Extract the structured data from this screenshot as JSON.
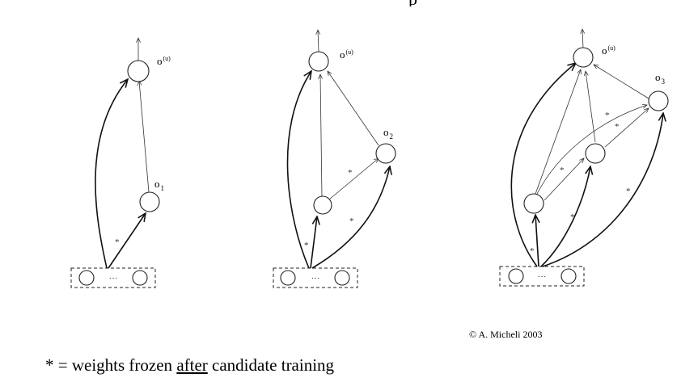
{
  "panels": [
    {
      "id": "step1",
      "output_label": {
        "base": "o",
        "sup": "(u)"
      },
      "hidden_labels": [
        {
          "base": "o",
          "sub": "1"
        }
      ],
      "input_dots": "···",
      "stars": [
        "*"
      ]
    },
    {
      "id": "step2",
      "output_label": {
        "base": "o",
        "sup": "(u)"
      },
      "hidden_labels": [
        {
          "base": "o",
          "sub": "2"
        }
      ],
      "input_dots": "···",
      "stars": [
        "*",
        "*",
        "*"
      ]
    },
    {
      "id": "step3",
      "output_label": {
        "base": "o",
        "sup": "(u)"
      },
      "hidden_labels": [
        {
          "base": "o",
          "sub": "3"
        }
      ],
      "input_dots": "···",
      "stars": [
        "*",
        "*",
        "*",
        "*",
        "*",
        "*"
      ]
    }
  ],
  "copyright": "© A. Micheli 2003",
  "footnote": {
    "prefix": "* = weights frozen ",
    "emphasis": "after",
    "suffix": " candidate training"
  }
}
